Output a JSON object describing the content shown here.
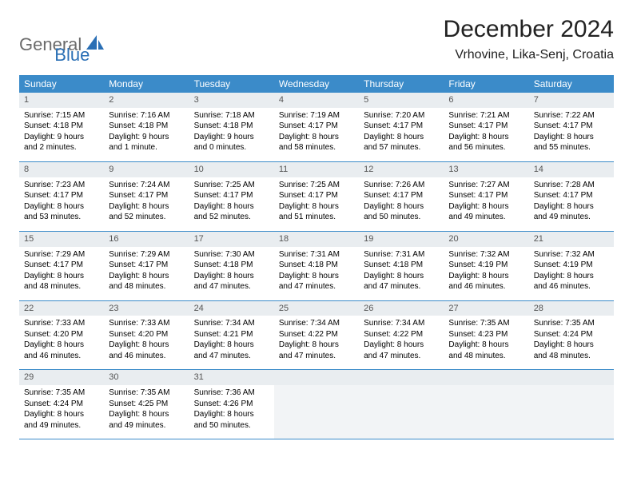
{
  "logo": {
    "text1": "General",
    "text2": "Blue"
  },
  "title": "December 2024",
  "location": "Vrhovine, Lika-Senj, Croatia",
  "theme": {
    "header_bg": "#3b8bc9",
    "header_text": "#ffffff",
    "daynum_bg": "#e9edf0",
    "daynum_text": "#555555",
    "border": "#3b8bc9",
    "title_fontsize": 30,
    "location_fontsize": 16,
    "th_fontsize": 12,
    "cell_fontsize": 10
  },
  "weekdays": [
    "Sunday",
    "Monday",
    "Tuesday",
    "Wednesday",
    "Thursday",
    "Friday",
    "Saturday"
  ],
  "weeks": [
    [
      {
        "day": "1",
        "sunrise": "Sunrise: 7:15 AM",
        "sunset": "Sunset: 4:18 PM",
        "daylight": "Daylight: 9 hours and 2 minutes."
      },
      {
        "day": "2",
        "sunrise": "Sunrise: 7:16 AM",
        "sunset": "Sunset: 4:18 PM",
        "daylight": "Daylight: 9 hours and 1 minute."
      },
      {
        "day": "3",
        "sunrise": "Sunrise: 7:18 AM",
        "sunset": "Sunset: 4:18 PM",
        "daylight": "Daylight: 9 hours and 0 minutes."
      },
      {
        "day": "4",
        "sunrise": "Sunrise: 7:19 AM",
        "sunset": "Sunset: 4:17 PM",
        "daylight": "Daylight: 8 hours and 58 minutes."
      },
      {
        "day": "5",
        "sunrise": "Sunrise: 7:20 AM",
        "sunset": "Sunset: 4:17 PM",
        "daylight": "Daylight: 8 hours and 57 minutes."
      },
      {
        "day": "6",
        "sunrise": "Sunrise: 7:21 AM",
        "sunset": "Sunset: 4:17 PM",
        "daylight": "Daylight: 8 hours and 56 minutes."
      },
      {
        "day": "7",
        "sunrise": "Sunrise: 7:22 AM",
        "sunset": "Sunset: 4:17 PM",
        "daylight": "Daylight: 8 hours and 55 minutes."
      }
    ],
    [
      {
        "day": "8",
        "sunrise": "Sunrise: 7:23 AM",
        "sunset": "Sunset: 4:17 PM",
        "daylight": "Daylight: 8 hours and 53 minutes."
      },
      {
        "day": "9",
        "sunrise": "Sunrise: 7:24 AM",
        "sunset": "Sunset: 4:17 PM",
        "daylight": "Daylight: 8 hours and 52 minutes."
      },
      {
        "day": "10",
        "sunrise": "Sunrise: 7:25 AM",
        "sunset": "Sunset: 4:17 PM",
        "daylight": "Daylight: 8 hours and 52 minutes."
      },
      {
        "day": "11",
        "sunrise": "Sunrise: 7:25 AM",
        "sunset": "Sunset: 4:17 PM",
        "daylight": "Daylight: 8 hours and 51 minutes."
      },
      {
        "day": "12",
        "sunrise": "Sunrise: 7:26 AM",
        "sunset": "Sunset: 4:17 PM",
        "daylight": "Daylight: 8 hours and 50 minutes."
      },
      {
        "day": "13",
        "sunrise": "Sunrise: 7:27 AM",
        "sunset": "Sunset: 4:17 PM",
        "daylight": "Daylight: 8 hours and 49 minutes."
      },
      {
        "day": "14",
        "sunrise": "Sunrise: 7:28 AM",
        "sunset": "Sunset: 4:17 PM",
        "daylight": "Daylight: 8 hours and 49 minutes."
      }
    ],
    [
      {
        "day": "15",
        "sunrise": "Sunrise: 7:29 AM",
        "sunset": "Sunset: 4:17 PM",
        "daylight": "Daylight: 8 hours and 48 minutes."
      },
      {
        "day": "16",
        "sunrise": "Sunrise: 7:29 AM",
        "sunset": "Sunset: 4:17 PM",
        "daylight": "Daylight: 8 hours and 48 minutes."
      },
      {
        "day": "17",
        "sunrise": "Sunrise: 7:30 AM",
        "sunset": "Sunset: 4:18 PM",
        "daylight": "Daylight: 8 hours and 47 minutes."
      },
      {
        "day": "18",
        "sunrise": "Sunrise: 7:31 AM",
        "sunset": "Sunset: 4:18 PM",
        "daylight": "Daylight: 8 hours and 47 minutes."
      },
      {
        "day": "19",
        "sunrise": "Sunrise: 7:31 AM",
        "sunset": "Sunset: 4:18 PM",
        "daylight": "Daylight: 8 hours and 47 minutes."
      },
      {
        "day": "20",
        "sunrise": "Sunrise: 7:32 AM",
        "sunset": "Sunset: 4:19 PM",
        "daylight": "Daylight: 8 hours and 46 minutes."
      },
      {
        "day": "21",
        "sunrise": "Sunrise: 7:32 AM",
        "sunset": "Sunset: 4:19 PM",
        "daylight": "Daylight: 8 hours and 46 minutes."
      }
    ],
    [
      {
        "day": "22",
        "sunrise": "Sunrise: 7:33 AM",
        "sunset": "Sunset: 4:20 PM",
        "daylight": "Daylight: 8 hours and 46 minutes."
      },
      {
        "day": "23",
        "sunrise": "Sunrise: 7:33 AM",
        "sunset": "Sunset: 4:20 PM",
        "daylight": "Daylight: 8 hours and 46 minutes."
      },
      {
        "day": "24",
        "sunrise": "Sunrise: 7:34 AM",
        "sunset": "Sunset: 4:21 PM",
        "daylight": "Daylight: 8 hours and 47 minutes."
      },
      {
        "day": "25",
        "sunrise": "Sunrise: 7:34 AM",
        "sunset": "Sunset: 4:22 PM",
        "daylight": "Daylight: 8 hours and 47 minutes."
      },
      {
        "day": "26",
        "sunrise": "Sunrise: 7:34 AM",
        "sunset": "Sunset: 4:22 PM",
        "daylight": "Daylight: 8 hours and 47 minutes."
      },
      {
        "day": "27",
        "sunrise": "Sunrise: 7:35 AM",
        "sunset": "Sunset: 4:23 PM",
        "daylight": "Daylight: 8 hours and 48 minutes."
      },
      {
        "day": "28",
        "sunrise": "Sunrise: 7:35 AM",
        "sunset": "Sunset: 4:24 PM",
        "daylight": "Daylight: 8 hours and 48 minutes."
      }
    ],
    [
      {
        "day": "29",
        "sunrise": "Sunrise: 7:35 AM",
        "sunset": "Sunset: 4:24 PM",
        "daylight": "Daylight: 8 hours and 49 minutes."
      },
      {
        "day": "30",
        "sunrise": "Sunrise: 7:35 AM",
        "sunset": "Sunset: 4:25 PM",
        "daylight": "Daylight: 8 hours and 49 minutes."
      },
      {
        "day": "31",
        "sunrise": "Sunrise: 7:36 AM",
        "sunset": "Sunset: 4:26 PM",
        "daylight": "Daylight: 8 hours and 50 minutes."
      },
      null,
      null,
      null,
      null
    ]
  ]
}
